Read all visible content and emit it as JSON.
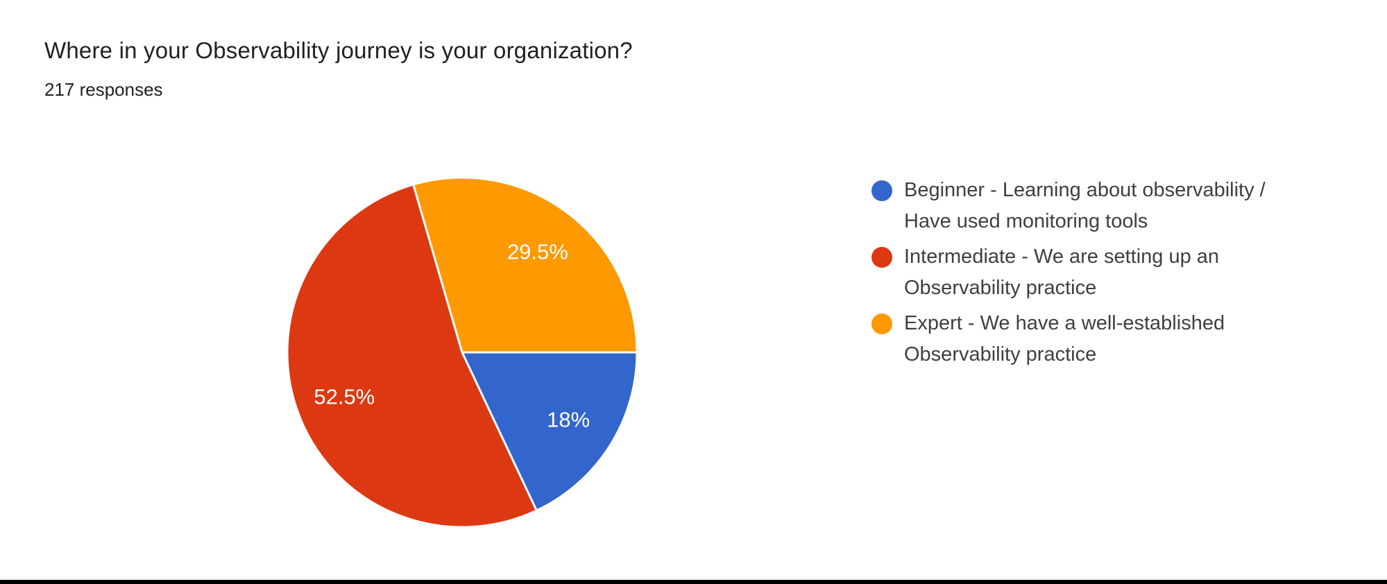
{
  "header": {
    "title": "Where in your Observability journey is your organization?",
    "responses": "217 responses"
  },
  "chart_data": {
    "type": "pie",
    "title": "Where in your Observability journey is your organization?",
    "subtitle": "217 responses",
    "total_responses": 217,
    "start_angle_deg": 0,
    "direction": "clockwise",
    "legend_position": "right",
    "slices": [
      {
        "label": "Beginner - Learning about observability / Have used monitoring tools",
        "value_pct": 18,
        "display_label": "18%",
        "color": "#3366CC"
      },
      {
        "label": "Intermediate - We are setting up an Observability practice",
        "value_pct": 52.5,
        "display_label": "52.5%",
        "color": "#DC3912"
      },
      {
        "label": "Expert - We have a well-established Observability practice",
        "value_pct": 29.5,
        "display_label": "29.5%",
        "color": "#FF9900"
      }
    ]
  },
  "legend": {
    "items": [
      {
        "lines": [
          "Beginner - Learning about observability /",
          "Have used monitoring tools"
        ],
        "color": "#3366CC"
      },
      {
        "lines": [
          "Intermediate - We are setting up an",
          "Observability practice"
        ],
        "color": "#DC3912"
      },
      {
        "lines": [
          "Expert - We have a well-established",
          "Observability practice"
        ],
        "color": "#FF9900"
      }
    ]
  },
  "style": {
    "bottom_bar_color": "#000000",
    "background_color": "#FFFFFF"
  }
}
